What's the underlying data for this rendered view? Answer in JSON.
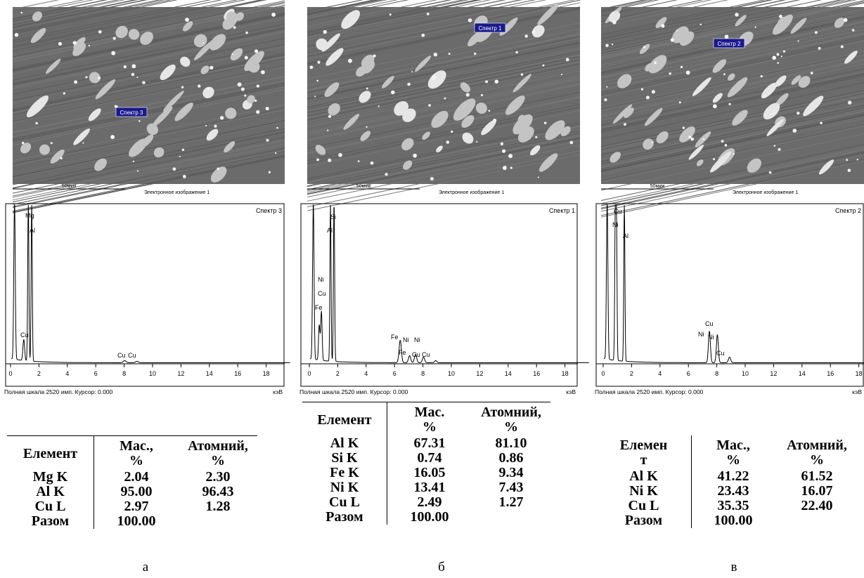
{
  "panels": [
    {
      "caption": "а",
      "image": {
        "spectrum_label": "Спектр 3",
        "scale": "50мкм",
        "caption": "Электронное изображение 1"
      },
      "spectrum": {
        "title": "Спектр 3",
        "xlim": [
          0,
          20
        ],
        "xticks": [
          0,
          2,
          4,
          6,
          8,
          10,
          12,
          14,
          16,
          18
        ],
        "unit": "кэВ",
        "footer": "Полная шкала 2520 имп. Курсор: 0.000",
        "peak_labels": [
          "Mg",
          "Al",
          "Cu",
          "Cu",
          "Cu"
        ]
      },
      "table": {
        "header": [
          [
            "Елемент"
          ],
          [
            "Мас.,",
            "%"
          ],
          [
            "Атомний,",
            "%"
          ]
        ],
        "rows": [
          [
            "Mg K",
            "2.04",
            "2.30"
          ],
          [
            "Al K",
            "95.00",
            "96.43"
          ],
          [
            "Cu L",
            "2.97",
            "1.28"
          ],
          [
            "Разом",
            "100.00"
          ]
        ]
      }
    },
    {
      "caption": "б",
      "image": {
        "spectrum_label": "Спектр 1",
        "scale": "50мкм",
        "caption": "Электронное изображение 1"
      },
      "spectrum": {
        "title": "Спектр 1",
        "xlim": [
          0,
          20
        ],
        "xticks": [
          0,
          2,
          4,
          6,
          8,
          10,
          12,
          14,
          16,
          18
        ],
        "unit": "кэВ",
        "footer": "Полная шкала 2520 имп. Курсор: 0.000",
        "peak_labels": [
          "Si",
          "Al",
          "Ni",
          "Cu",
          "Fe",
          "Fe",
          "Ni",
          "Ni",
          "Fe",
          "Cu",
          "Cu"
        ]
      },
      "table": {
        "header": [
          [
            "Елемент"
          ],
          [
            "Мас.",
            "%"
          ],
          [
            "Атомний,",
            "%"
          ]
        ],
        "rows": [
          [
            "Al K",
            "67.31",
            "81.10"
          ],
          [
            "Si K",
            "0.74",
            "0.86"
          ],
          [
            "Fe K",
            "16.05",
            "9.34"
          ],
          [
            "Ni K",
            "13.41",
            "7.43"
          ],
          [
            "Cu L",
            "2.49",
            "1.27"
          ],
          [
            "Разом",
            "100.00"
          ]
        ]
      }
    },
    {
      "caption": "в",
      "image": {
        "spectrum_label": "Спектр 2",
        "scale": "50мкм",
        "caption": "Электронное изображение 1"
      },
      "spectrum": {
        "title": "Спектр 2",
        "xlim": [
          0,
          20
        ],
        "xticks": [
          0,
          2,
          4,
          6,
          8,
          10,
          12,
          14,
          16,
          18
        ],
        "unit": "кэВ",
        "footer": "Полная шкала 2520 имп. Курсор: 0.000",
        "peak_labels": [
          "Cu",
          "Ni",
          "Al",
          "Cu",
          "Ni",
          "Ni",
          "Cu"
        ]
      },
      "table": {
        "header": [
          [
            "Елемен",
            "т"
          ],
          [
            "Мас.,",
            "%"
          ],
          [
            "Атомний,",
            "%"
          ]
        ],
        "rows": [
          [
            "Al K",
            "41.22",
            "61.52"
          ],
          [
            "Ni K",
            "23.43",
            "16.07"
          ],
          [
            "Cu L",
            "35.35",
            "22.40"
          ],
          [
            "Разом",
            "100.00"
          ]
        ]
      }
    }
  ]
}
